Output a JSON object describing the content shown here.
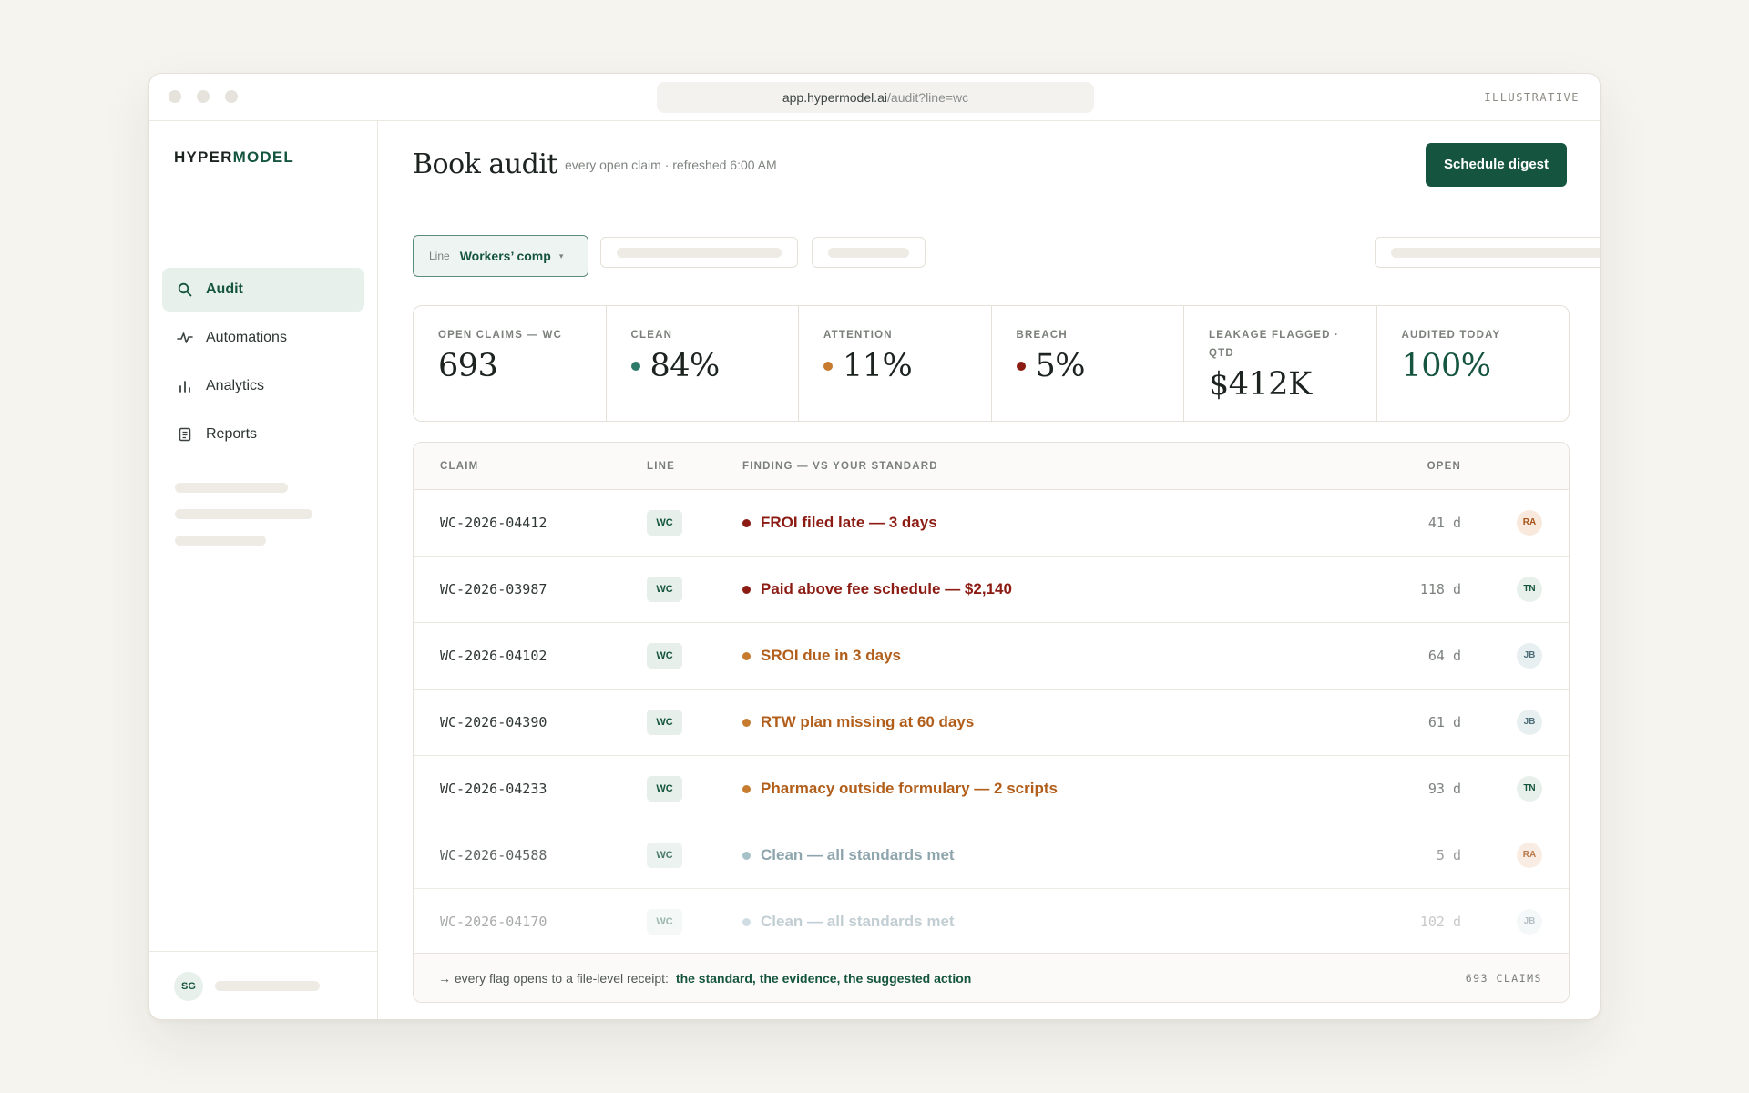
{
  "browser": {
    "url_host": "app.hypermodel.ai",
    "url_path": "/audit?line=wc",
    "badge": "ILLUSTRATIVE"
  },
  "sidebar": {
    "brand_a": "HYPER",
    "brand_b": "MODEL",
    "items": [
      {
        "label": "Audit",
        "icon": "search-icon",
        "active": true
      },
      {
        "label": "Automations",
        "icon": "activity-icon",
        "active": false
      },
      {
        "label": "Analytics",
        "icon": "bar-chart-icon",
        "active": false
      },
      {
        "label": "Reports",
        "icon": "document-icon",
        "active": false
      }
    ],
    "user_initials": "SG"
  },
  "header": {
    "title": "Book audit",
    "subtitle": "every open claim · refreshed 6:00 AM",
    "button": "Schedule digest"
  },
  "filter": {
    "label": "Line",
    "value": "Workers’ comp",
    "chevron": "▾"
  },
  "kpis": [
    {
      "label": "OPEN CLAIMS — WC",
      "value": "693"
    },
    {
      "label": "CLEAN",
      "value": "84%",
      "dot": "#2d7a6a"
    },
    {
      "label": "ATTENTION",
      "value": "11%",
      "dot": "#c67b2e"
    },
    {
      "label": "BREACH",
      "value": "5%",
      "dot": "#8c1c13"
    },
    {
      "label": "LEAKAGE FLAGGED · QTD",
      "value": "$412K"
    },
    {
      "label": "AUDITED TODAY",
      "value": "100%",
      "accent": true
    }
  ],
  "table": {
    "columns": {
      "claim": "CLAIM",
      "line": "LINE",
      "finding": "FINDING — VS YOUR STANDARD",
      "open": "OPEN"
    },
    "rows": [
      {
        "claim": "WC-2026-04412",
        "line": "WC",
        "finding": "FROI filed late — 3 days",
        "severity": "breach",
        "open": "41 d",
        "assignee": "RA"
      },
      {
        "claim": "WC-2026-03987",
        "line": "WC",
        "finding": "Paid above fee schedule — $2,140",
        "severity": "breach",
        "open": "118 d",
        "assignee": "TN"
      },
      {
        "claim": "WC-2026-04102",
        "line": "WC",
        "finding": "SROI due in 3 days",
        "severity": "attention",
        "open": "64 d",
        "assignee": "JB"
      },
      {
        "claim": "WC-2026-04390",
        "line": "WC",
        "finding": "RTW plan missing at 60 days",
        "severity": "attention",
        "open": "61 d",
        "assignee": "JB"
      },
      {
        "claim": "WC-2026-04233",
        "line": "WC",
        "finding": "Pharmacy outside formulary — 2 scripts",
        "severity": "attention",
        "open": "93 d",
        "assignee": "TN"
      },
      {
        "claim": "WC-2026-04588",
        "line": "WC",
        "finding": "Clean — all standards met",
        "severity": "clean",
        "open": "5 d",
        "assignee": "RA"
      },
      {
        "claim": "WC-2026-04170",
        "line": "WC",
        "finding": "Clean — all standards met",
        "severity": "clean",
        "open": "102 d",
        "assignee": "JB"
      }
    ],
    "footer_text": "→ every flag opens to a file-level receipt:",
    "footer_strong": "the standard, the evidence, the suggested action",
    "footer_count": "693 CLAIMS"
  },
  "colors": {
    "brand": "#15553f",
    "breach": "#8c1c13",
    "attention": "#b25e1b",
    "attention_dot": "#c67b2e",
    "clean": "#6f8d97",
    "clean_dot": "#8fb0bb"
  }
}
